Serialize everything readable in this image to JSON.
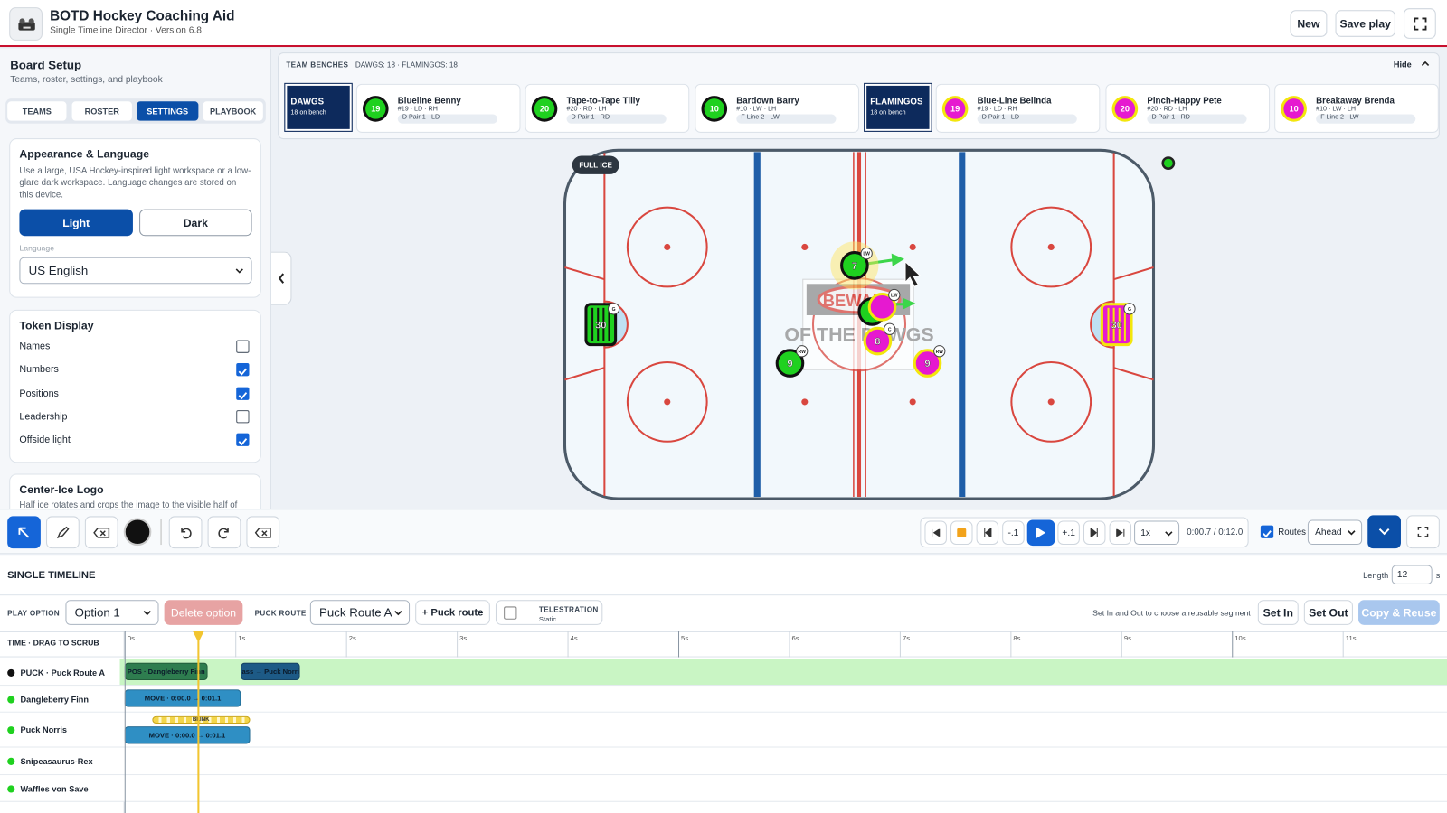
{
  "header": {
    "title": "BOTD Hockey Coaching Aid",
    "subtitle": "Single Timeline Director · Version 6.8",
    "buttons": [
      "New",
      "Save play"
    ]
  },
  "sidebar": {
    "title": "Board Setup",
    "subtitle": "Teams, roster, settings, and playbook",
    "tabs": [
      "TEAMS",
      "ROSTER",
      "SETTINGS",
      "PLAYBOOK"
    ],
    "active_tab": 2,
    "appearance": {
      "title": "Appearance & Language",
      "description": "Use a large, USA Hockey-inspired light workspace or a low-glare dark workspace. Language changes are stored on this device.",
      "buttons": [
        "Light",
        "Dark"
      ],
      "language_label": "Language",
      "language": "US English"
    },
    "token_display": {
      "title": "Token Display",
      "options": [
        {
          "label": "Names",
          "checked": false
        },
        {
          "label": "Numbers",
          "checked": true
        },
        {
          "label": "Positions",
          "checked": true
        },
        {
          "label": "Leadership",
          "checked": false
        },
        {
          "label": "Offside light",
          "checked": true
        }
      ]
    },
    "logo": {
      "title": "Center-Ice Logo",
      "description": "Half ice rotates and crops the image to the visible half of"
    }
  },
  "benches": {
    "label": "TEAM BENCHES",
    "summary": "DAWGS: 18 · FLAMINGOS: 18",
    "hide": "Hide",
    "teams": [
      {
        "name": "DAWGS",
        "sub": "18 on bench",
        "color": "#1fd11f",
        "ring": "#111111",
        "players": [
          {
            "number": "19",
            "name": "Blueline Benny",
            "details": "#19 · LD · RH",
            "role": "D Pair 1 · LD"
          },
          {
            "number": "20",
            "name": "Tape-to-Tape Tilly",
            "details": "#20 · RD · LH",
            "role": "D Pair 1 · RD"
          },
          {
            "number": "10",
            "name": "Bardown Barry",
            "details": "#10 · LW · LH",
            "role": "F Line 2 · LW"
          }
        ]
      },
      {
        "name": "FLAMINGOS",
        "sub": "18 on bench",
        "color": "#e619d0",
        "ring": "#f3e60c",
        "players": [
          {
            "number": "19",
            "name": "Blue-Line Belinda",
            "details": "#19 · LD · RH",
            "role": "D Pair 1 · LD"
          },
          {
            "number": "20",
            "name": "Pinch-Happy Pete",
            "details": "#20 · RD · LH",
            "role": "D Pair 1 · RD"
          },
          {
            "number": "10",
            "name": "Breakaway Brenda",
            "details": "#10 · LW · LH",
            "role": "F Line 2 · LW"
          }
        ]
      }
    ]
  },
  "rink": {
    "badge": "FULL ICE",
    "logo_top": "BEWARE",
    "logo_bottom": "OF THE DAWGS",
    "tokens": [
      {
        "number": "30",
        "position": "G"
      },
      {
        "number": "30",
        "position": "G"
      },
      {
        "number": "9",
        "position": "RW"
      },
      {
        "number": "7",
        "position": "LW"
      },
      {
        "position": "LW"
      },
      {
        "number": "8",
        "position": "C"
      },
      {
        "number": "9",
        "position": "RW"
      }
    ]
  },
  "transport": {
    "step_back": "-.1",
    "step_forward": "+.1",
    "speed": "1x",
    "time": "0:00.7 / 0:12.0",
    "routes": "Routes",
    "routes_checked": true,
    "mode": "Ahead"
  },
  "timeline": {
    "title": "SINGLE TIMELINE",
    "length_label": "Length",
    "length": "12",
    "length_unit": "s",
    "play_option_label": "PLAY OPTION",
    "play_option": "Option 1",
    "delete_option": "Delete option",
    "puck_route_label": "PUCK ROUTE",
    "puck_route": "Puck Route A",
    "add_puck_route": "+ Puck route",
    "telestration": "TELESTRATION",
    "telestration_mode": "Static",
    "hint": "Set In and Out to choose a reusable segment",
    "set_in": "Set In",
    "set_out": "Set Out",
    "copy_reuse": "Copy & Reuse",
    "scrub_label": "TIME · DRAG TO SCRUB",
    "playhead": 0.67,
    "xticks": [
      {
        "value": 0,
        "label": "0s"
      },
      {
        "value": 1,
        "label": "1s"
      },
      {
        "value": 2,
        "label": "2s"
      },
      {
        "value": 3,
        "label": "3s"
      },
      {
        "value": 4,
        "label": "4s"
      },
      {
        "value": 5,
        "label": "5s"
      },
      {
        "value": 6,
        "label": "6s"
      },
      {
        "value": 7,
        "label": "7s"
      },
      {
        "value": 8,
        "label": "8s"
      },
      {
        "value": 9,
        "label": "9s"
      },
      {
        "value": 10,
        "label": "10s"
      },
      {
        "value": 11,
        "label": "11s"
      }
    ],
    "rows": [
      {
        "name": "PUCK · Puck Route A",
        "color": "#111111",
        "clips": [
          {
            "label": "POS · Dangleberry Finn",
            "start": 0,
            "end": 0.75,
            "color": "#2e7d4f"
          },
          {
            "label": "Pass → Puck Norris",
            "start": 1.05,
            "end": 1.58,
            "color": "#1d5a86"
          }
        ]
      },
      {
        "name": "Dangleberry Finn",
        "color": "#1fd11f",
        "clips": [
          {
            "label": "MOVE · 0:00.0 → 0:01.1",
            "start": 0,
            "end": 1.05,
            "color": "#2f8fc4"
          }
        ]
      },
      {
        "name": "Puck Norris",
        "color": "#1fd11f",
        "clips": [
          {
            "label": "BLINK",
            "start": 0.25,
            "end": 1.13,
            "color": "#f3d64a"
          },
          {
            "label": "MOVE · 0:00.0 → 0:01.1",
            "start": 0,
            "end": 1.13,
            "color": "#2f8fc4"
          }
        ]
      },
      {
        "name": "Snipeasaurus-Rex",
        "color": "#1fd11f",
        "clips": []
      },
      {
        "name": "Waffles von Save",
        "color": "#1fd11f",
        "clips": []
      }
    ]
  }
}
